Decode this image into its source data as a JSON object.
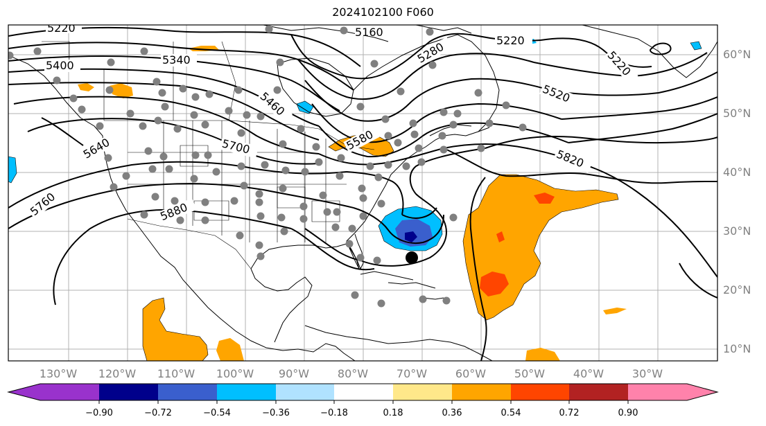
{
  "title": "2024102100 F060",
  "lon_labels": [
    "130°W",
    "120°W",
    "110°W",
    "100°W",
    "90°W",
    "80°W",
    "70°W",
    "60°W",
    "50°W",
    "40°W",
    "30°W"
  ],
  "lat_labels": [
    "60°N",
    "50°N",
    "40°N",
    "30°N",
    "20°N",
    "10°N"
  ],
  "contour_labels": [
    "5220",
    "5340",
    "5400",
    "5460",
    "5580",
    "5280",
    "5220",
    "5220",
    "5520",
    "5640",
    "5700",
    "5760",
    "5820",
    "5880",
    "5160"
  ],
  "colorbar": {
    "ticks": [
      "−0.90",
      "−0.72",
      "−0.54",
      "−0.36",
      "−0.18",
      "0.18",
      "0.36",
      "0.54",
      "0.72",
      "0.90"
    ],
    "colors": [
      "#9932cc",
      "#00008b",
      "#3a5fcd",
      "#00bfff",
      "#b0e2ff",
      "#ffffff",
      "#ffe88a",
      "#ffa500",
      "#ff4500",
      "#b22222",
      "#ff82ab"
    ]
  },
  "colors": {
    "map_border": "#000000",
    "grid": "#b0b0b0",
    "station": "#808080",
    "center_dot": "#000000"
  }
}
